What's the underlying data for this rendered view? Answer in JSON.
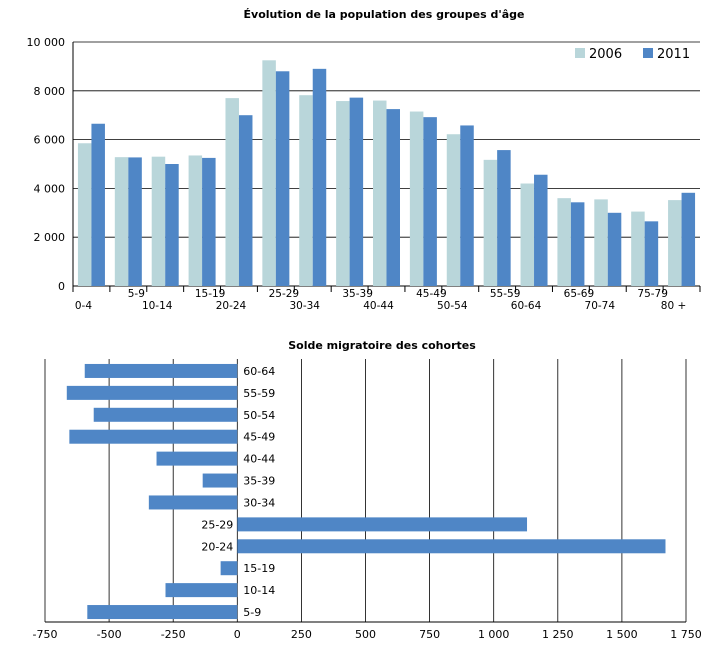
{
  "chart_data": [
    {
      "type": "bar",
      "title": "Évolution de la population des groupes d'âge",
      "xlabel": "",
      "ylabel": "",
      "categories": [
        "0-4",
        "5-9",
        "10-14",
        "15-19",
        "20-24",
        "25-29",
        "30-34",
        "35-39",
        "40-44",
        "45-49",
        "50-54",
        "55-59",
        "60-64",
        "65-69",
        "70-74",
        "75-79",
        "80 +"
      ],
      "series": [
        {
          "name": "2006",
          "color": "#b9d6da",
          "values": [
            5850,
            5280,
            5300,
            5350,
            7700,
            9250,
            7820,
            7580,
            7600,
            7150,
            6220,
            5170,
            4200,
            3600,
            3550,
            3050,
            3520
          ]
        },
        {
          "name": "2011",
          "color": "#4f86c6",
          "values": [
            6650,
            5270,
            5000,
            5250,
            7000,
            8800,
            8900,
            7720,
            7250,
            6920,
            6580,
            5570,
            4560,
            3430,
            3000,
            2650,
            3820
          ]
        }
      ],
      "ylim": [
        0,
        10000
      ],
      "yticks": [
        "0",
        "2 000",
        "4 000",
        "6 000",
        "8 000",
        "10 000"
      ],
      "ytick_values": [
        0,
        2000,
        4000,
        6000,
        8000,
        10000
      ],
      "grid": "horizontal",
      "legend": "top-right"
    },
    {
      "type": "bar",
      "orientation": "horizontal",
      "title": "Solde migratoire des cohortes",
      "xlabel": "",
      "ylabel": "",
      "categories": [
        "60-64",
        "55-59",
        "50-54",
        "45-49",
        "40-44",
        "35-39",
        "30-34",
        "25-29",
        "20-24",
        "15-19",
        "10-14",
        "5-9"
      ],
      "series": [
        {
          "name": "",
          "color": "#4f86c6",
          "values": [
            -595,
            -665,
            -560,
            -655,
            -315,
            -135,
            -345,
            1130,
            1670,
            -65,
            -280,
            -585
          ]
        }
      ],
      "xlim": [
        -750,
        1750
      ],
      "xticks": [
        "-750",
        "-500",
        "-250",
        "0",
        "250",
        "500",
        "750",
        "1 000",
        "1 250",
        "1 500",
        "1 750"
      ],
      "xtick_values": [
        -750,
        -500,
        -250,
        0,
        250,
        500,
        750,
        1000,
        1250,
        1500,
        1750
      ],
      "grid": "vertical",
      "legend": "none"
    }
  ]
}
